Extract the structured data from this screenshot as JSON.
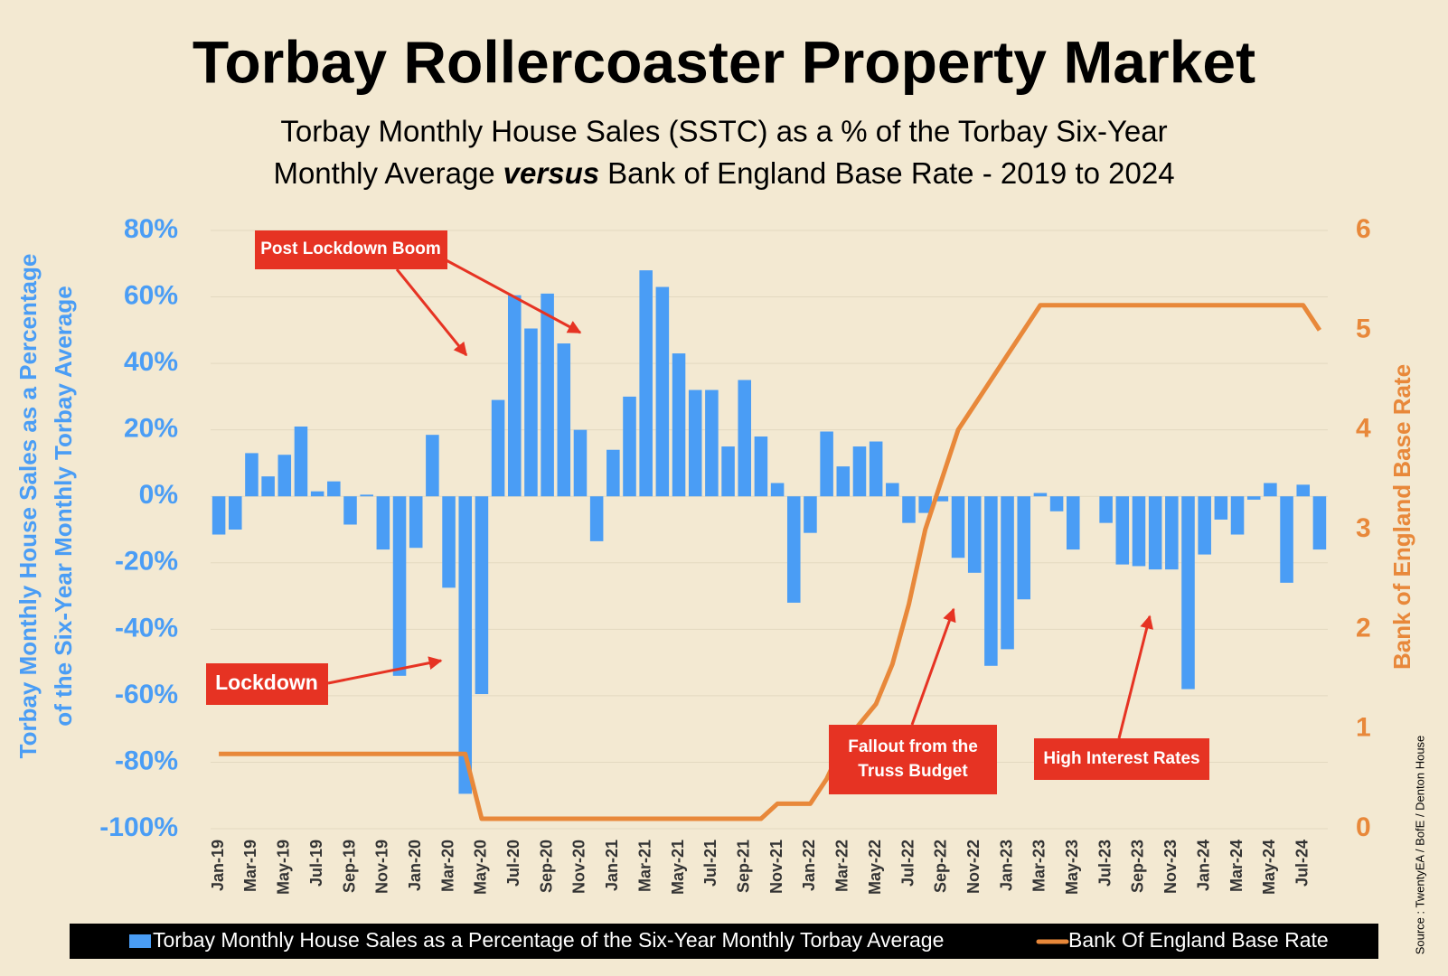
{
  "chart_data": {
    "type": "bar",
    "title": "Torbay Rollercoaster Property Market",
    "subtitle": [
      "Torbay Monthly House Sales (SSTC) as a % of the Torbay Six-Year",
      "Monthly Average",
      "versus",
      "Bank of England Base Rate - 2019 to 2024"
    ],
    "categories": [
      "Jan-19",
      null,
      "Mar-19",
      null,
      "May-19",
      null,
      "Jul-19",
      null,
      "Sep-19",
      null,
      "Nov-19",
      null,
      "Jan-20",
      null,
      "Mar-20",
      null,
      "May-20",
      null,
      "Jul-20",
      null,
      "Sep-20",
      null,
      "Nov-20",
      null,
      "Jan-21",
      null,
      "Mar-21",
      null,
      "May-21",
      null,
      "Jul-21",
      null,
      "Sep-21",
      null,
      "Nov-21",
      null,
      "Jan-22",
      null,
      "Mar-22",
      null,
      "May-22",
      null,
      "Jul-22",
      null,
      "Sep-22",
      null,
      "Nov-22",
      null,
      "Jan-23",
      null,
      "Mar-23",
      null,
      "May-23",
      null,
      "Jul-23",
      null,
      "Sep-23",
      null,
      "Nov-23",
      null,
      "Jan-24",
      null,
      "Mar-24",
      null,
      "May-24",
      null,
      "Jul-24",
      null
    ],
    "series": [
      {
        "name": "Torbay Monthly House Sales as a Percentage of the Six-Year Monthly Torbay Average",
        "type": "bar",
        "color": "#4a9df5",
        "values": [
          -11.5,
          -10,
          13,
          6,
          12.5,
          21,
          1.5,
          4.5,
          -8.5,
          0.5,
          -16,
          -54,
          -15.5,
          18.5,
          -27.5,
          -89.5,
          -59.5,
          29,
          60.5,
          50.5,
          61,
          46,
          20,
          -13.5,
          14,
          30,
          68,
          63,
          43,
          32,
          32,
          15,
          35,
          18,
          4,
          -32,
          -11,
          19.5,
          9,
          15,
          16.5,
          4,
          -8,
          -5,
          -1.5,
          -18.5,
          -23,
          -51,
          -46,
          -31,
          1,
          -4.5,
          -16,
          0,
          -8,
          -20.5,
          -21,
          -22,
          -22,
          -58,
          -17.5,
          -7,
          -11.5,
          -1,
          4,
          -26,
          3.5,
          -16
        ]
      },
      {
        "name": "Bank Of England Base Rate",
        "type": "line",
        "axis": "y2",
        "color": "#e8883a",
        "values": [
          0.75,
          0.75,
          0.75,
          0.75,
          0.75,
          0.75,
          0.75,
          0.75,
          0.75,
          0.75,
          0.75,
          0.75,
          0.75,
          0.75,
          0.75,
          0.75,
          0.1,
          0.1,
          0.1,
          0.1,
          0.1,
          0.1,
          0.1,
          0.1,
          0.1,
          0.1,
          0.1,
          0.1,
          0.1,
          0.1,
          0.1,
          0.1,
          0.1,
          0.1,
          0.25,
          0.25,
          0.25,
          0.5,
          0.85,
          1.05,
          1.25,
          1.65,
          2.25,
          3.0,
          3.5,
          4.0,
          4.25,
          4.5,
          4.75,
          5.0,
          5.25,
          5.25,
          5.25,
          5.25,
          5.25,
          5.25,
          5.25,
          5.25,
          5.25,
          5.25,
          5.25,
          5.25,
          5.25,
          5.25,
          5.25,
          5.25,
          5.25,
          5.0
        ]
      }
    ],
    "ylim": [
      -100,
      80
    ],
    "yticks": [
      {
        "value": -100,
        "label": "-100%"
      },
      {
        "value": -80,
        "label": "-80%"
      },
      {
        "value": -60,
        "label": "-60%"
      },
      {
        "value": -40,
        "label": "-40%"
      },
      {
        "value": -20,
        "label": "-20%"
      },
      {
        "value": 0,
        "label": "0%"
      },
      {
        "value": 20,
        "label": "20%"
      },
      {
        "value": 40,
        "label": "40%"
      },
      {
        "value": 60,
        "label": "60%"
      },
      {
        "value": 80,
        "label": "80%"
      }
    ],
    "y2lim": [
      0,
      6
    ],
    "y2ticks": [
      0,
      1,
      2,
      3,
      4,
      5,
      6
    ],
    "ylabel": [
      "Torbay Monthly House Sales as a Percentage",
      "of the Six-Year Monthly Torbay Average"
    ],
    "y2label": "Bank of England Base Rate",
    "grid": true,
    "legend": "bottom",
    "source": "Source : TwentyEA / BofE / Denton House",
    "annotations": [
      {
        "text": [
          "Post Lockdown Boom"
        ]
      },
      {
        "text": [
          "Lockdown"
        ]
      },
      {
        "text": [
          "Fallout from the",
          "Truss Budget"
        ]
      },
      {
        "text": [
          "High Interest Rates"
        ]
      }
    ]
  }
}
